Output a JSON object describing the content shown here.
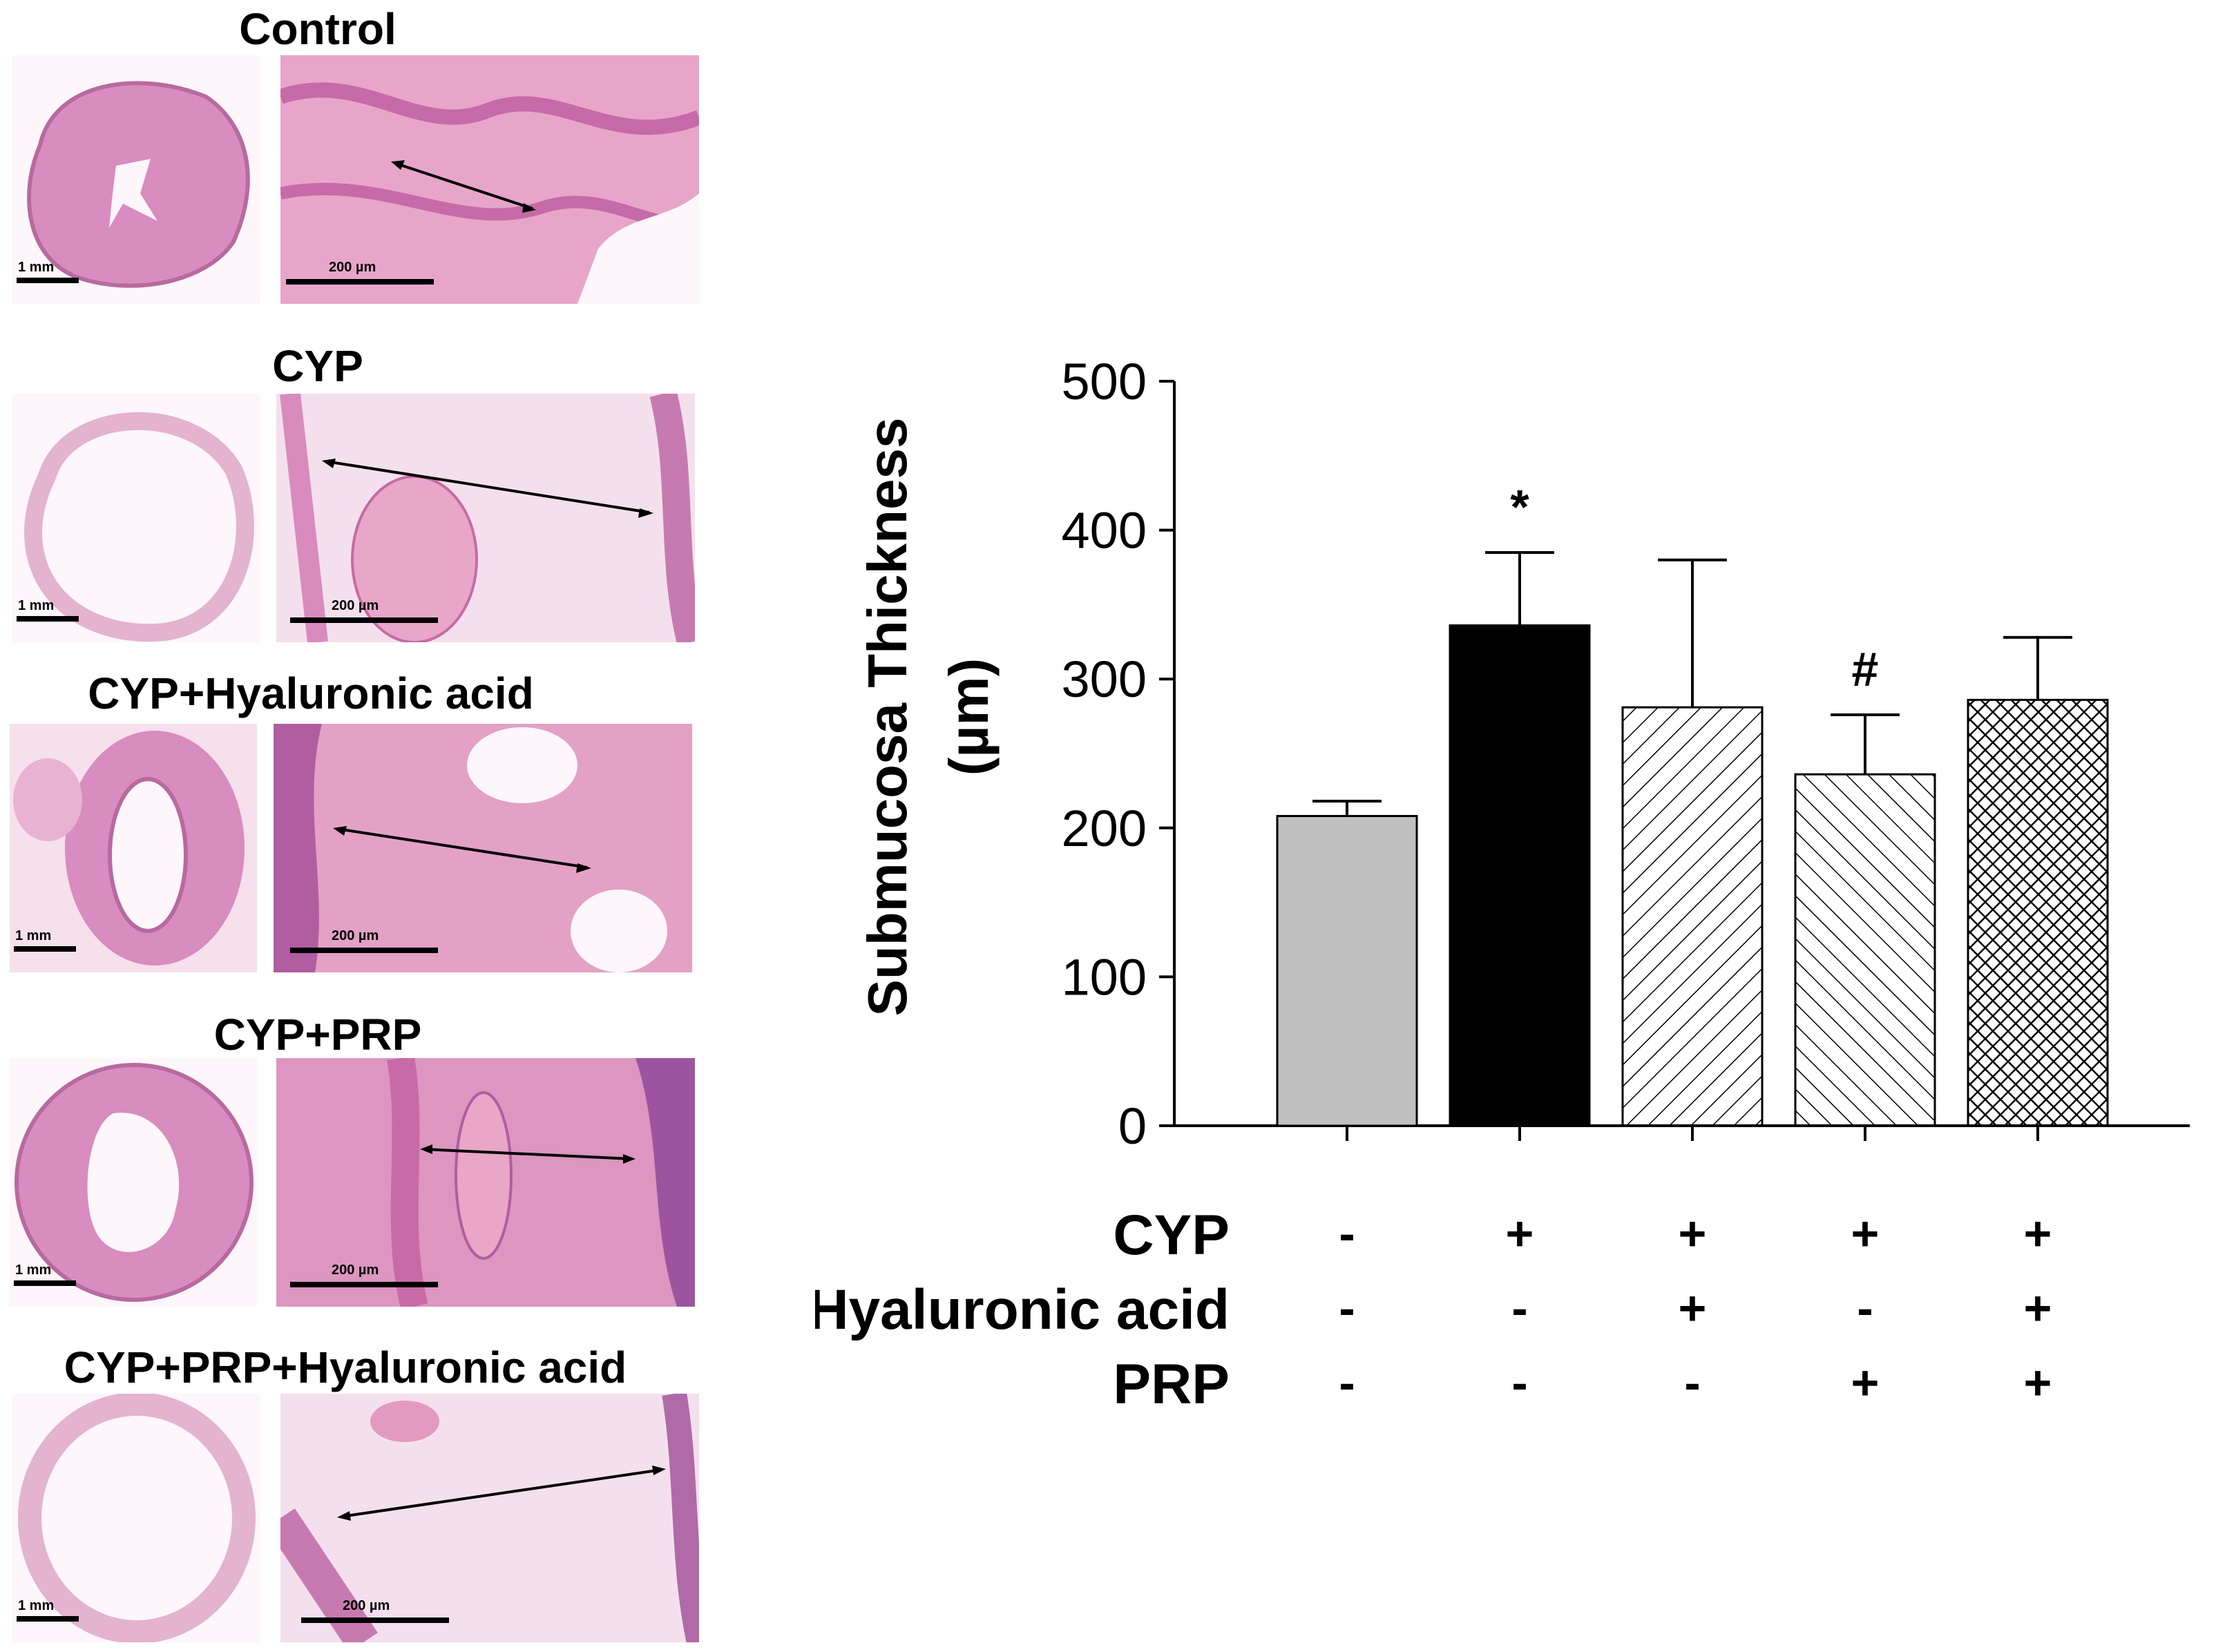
{
  "panels": [
    {
      "title": "Control",
      "low_mag_scale": "1 mm",
      "high_mag_scale": "200 µm"
    },
    {
      "title": "CYP",
      "low_mag_scale": "1 mm",
      "high_mag_scale": "200 µm"
    },
    {
      "title": "CYP+Hyaluronic acid",
      "low_mag_scale": "1 mm",
      "high_mag_scale": "200 µm"
    },
    {
      "title": "CYP+PRP",
      "low_mag_scale": "1 mm",
      "high_mag_scale": "200 µm"
    },
    {
      "title": "CYP+PRP+Hyaluronic acid",
      "low_mag_scale": "1 mm",
      "high_mag_scale": "200 µm"
    }
  ],
  "colors": {
    "tissue_pink": "#d88cc0",
    "tissue_light": "#f2d0e2",
    "bar_control": "#c0c0c0",
    "bar_cyp": "#000000"
  },
  "chart_data": {
    "type": "bar",
    "ylabel_line1": "Submucosa Thickness",
    "ylabel_line2": "(µm)",
    "ylim": [
      0,
      500
    ],
    "yticks": [
      "0",
      "100",
      "200",
      "300",
      "400",
      "500"
    ],
    "yticks_values": [
      0,
      100,
      200,
      300,
      400,
      500
    ],
    "groups": [
      "Control",
      "CYP",
      "CYP+Hyaluronic acid",
      "CYP+PRP",
      "CYP+PRP+Hyaluronic acid"
    ],
    "values": [
      208,
      336,
      281,
      236,
      286
    ],
    "error_upper": [
      218,
      385,
      380,
      276,
      328
    ],
    "fills": [
      "gray",
      "black",
      "hatch-forward",
      "hatch-back",
      "crosshatch"
    ],
    "annotations": [
      "",
      "*",
      "",
      "#",
      ""
    ],
    "treatment_rows": [
      {
        "label": "CYP",
        "marks": [
          "-",
          "+",
          "+",
          "+",
          "+"
        ]
      },
      {
        "label": "Hyaluronic acid",
        "marks": [
          "-",
          "-",
          "+",
          "-",
          "+"
        ]
      },
      {
        "label": "PRP",
        "marks": [
          "-",
          "-",
          "-",
          "+",
          "+"
        ]
      }
    ]
  }
}
